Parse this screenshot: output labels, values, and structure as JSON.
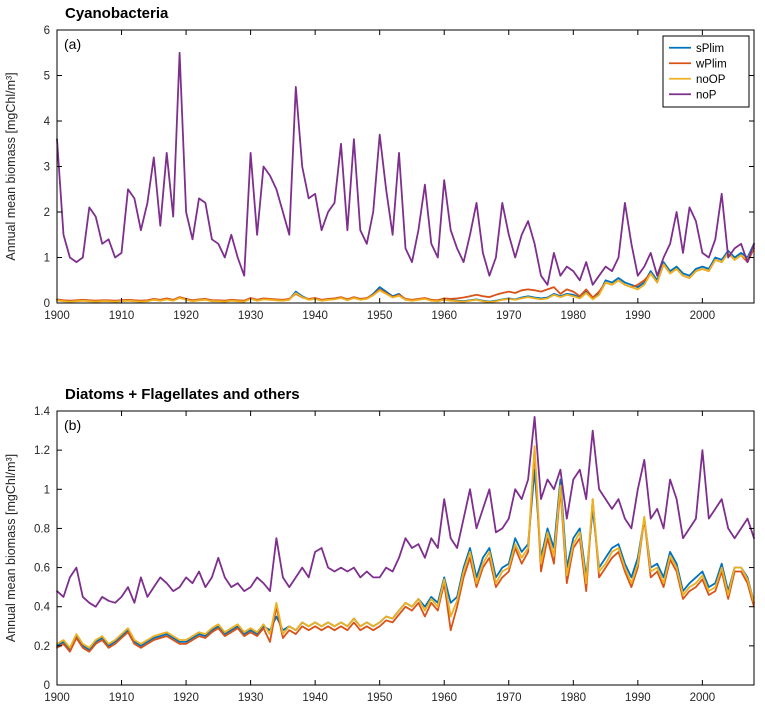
{
  "figure": {
    "background": "#ffffff",
    "axis_color": "#000000",
    "tick_text_color": "#262626",
    "series_colors": {
      "sPlim": "#0072BD",
      "wPlim": "#D95319",
      "noOP": "#EDB120",
      "noP": "#7E2F8E"
    }
  },
  "chart_data": [
    {
      "type": "line",
      "title": "Cyanobacteria",
      "panel_label": "(a)",
      "xlabel": "",
      "ylabel": "Annual mean biomass [mgChl/m³]",
      "x_start": 1900,
      "xlim": [
        1900,
        2008
      ],
      "ylim": [
        0,
        6
      ],
      "xticks": [
        1900,
        1910,
        1920,
        1930,
        1940,
        1950,
        1960,
        1970,
        1980,
        1990,
        2000
      ],
      "yticks": [
        0,
        1,
        2,
        3,
        4,
        5,
        6
      ],
      "ytick_labels": [
        "0",
        "1",
        "2",
        "3",
        "4",
        "5",
        "6"
      ],
      "grid": false,
      "legend": {
        "show": true,
        "position": "top-right",
        "entries": [
          "sPlim",
          "wPlim",
          "noOP",
          "noP"
        ]
      },
      "series": [
        {
          "name": "sPlim",
          "color": "#0072BD",
          "values": [
            0.07,
            0.05,
            0.04,
            0.05,
            0.06,
            0.05,
            0.04,
            0.05,
            0.05,
            0.04,
            0.05,
            0.06,
            0.05,
            0.04,
            0.05,
            0.08,
            0.06,
            0.09,
            0.06,
            0.12,
            0.08,
            0.05,
            0.07,
            0.08,
            0.05,
            0.05,
            0.04,
            0.06,
            0.05,
            0.04,
            0.1,
            0.06,
            0.09,
            0.08,
            0.07,
            0.06,
            0.08,
            0.25,
            0.15,
            0.08,
            0.1,
            0.06,
            0.08,
            0.09,
            0.12,
            0.07,
            0.12,
            0.08,
            0.1,
            0.2,
            0.35,
            0.25,
            0.15,
            0.2,
            0.08,
            0.06,
            0.08,
            0.1,
            0.06,
            0.05,
            0.08,
            0.06,
            0.05,
            0.04,
            0.06,
            0.08,
            0.05,
            0.03,
            0.05,
            0.08,
            0.1,
            0.08,
            0.12,
            0.15,
            0.12,
            0.1,
            0.12,
            0.2,
            0.15,
            0.2,
            0.18,
            0.12,
            0.25,
            0.1,
            0.2,
            0.5,
            0.45,
            0.55,
            0.45,
            0.4,
            0.35,
            0.45,
            0.7,
            0.5,
            0.9,
            0.7,
            0.8,
            0.65,
            0.6,
            0.75,
            0.8,
            0.75,
            1.0,
            0.95,
            1.15,
            1.0,
            1.1,
            1.0,
            1.3
          ]
        },
        {
          "name": "wPlim",
          "color": "#D95319",
          "values": [
            0.08,
            0.06,
            0.05,
            0.06,
            0.07,
            0.06,
            0.05,
            0.06,
            0.06,
            0.05,
            0.06,
            0.07,
            0.06,
            0.05,
            0.06,
            0.09,
            0.07,
            0.1,
            0.07,
            0.13,
            0.09,
            0.06,
            0.08,
            0.09,
            0.06,
            0.06,
            0.05,
            0.07,
            0.06,
            0.05,
            0.11,
            0.07,
            0.1,
            0.09,
            0.08,
            0.07,
            0.09,
            0.2,
            0.12,
            0.09,
            0.11,
            0.07,
            0.09,
            0.1,
            0.13,
            0.08,
            0.13,
            0.09,
            0.11,
            0.18,
            0.3,
            0.22,
            0.13,
            0.18,
            0.09,
            0.07,
            0.09,
            0.11,
            0.07,
            0.06,
            0.1,
            0.09,
            0.1,
            0.12,
            0.15,
            0.18,
            0.15,
            0.13,
            0.18,
            0.22,
            0.25,
            0.22,
            0.28,
            0.3,
            0.28,
            0.25,
            0.3,
            0.35,
            0.2,
            0.3,
            0.25,
            0.15,
            0.3,
            0.12,
            0.25,
            0.45,
            0.4,
            0.5,
            0.4,
            0.35,
            0.4,
            0.5,
            0.65,
            0.45,
            0.85,
            0.65,
            0.75,
            0.6,
            0.55,
            0.7,
            0.75,
            0.7,
            0.95,
            0.9,
            1.1,
            0.95,
            1.05,
            0.9,
            1.2
          ]
        },
        {
          "name": "noOP",
          "color": "#EDB120",
          "values": [
            0.06,
            0.04,
            0.03,
            0.04,
            0.05,
            0.04,
            0.03,
            0.04,
            0.04,
            0.03,
            0.04,
            0.05,
            0.04,
            0.03,
            0.04,
            0.07,
            0.05,
            0.08,
            0.05,
            0.11,
            0.07,
            0.04,
            0.06,
            0.07,
            0.04,
            0.04,
            0.03,
            0.05,
            0.04,
            0.03,
            0.09,
            0.05,
            0.08,
            0.07,
            0.06,
            0.05,
            0.07,
            0.22,
            0.13,
            0.07,
            0.09,
            0.05,
            0.07,
            0.08,
            0.11,
            0.06,
            0.11,
            0.07,
            0.09,
            0.17,
            0.28,
            0.2,
            0.12,
            0.16,
            0.07,
            0.05,
            0.07,
            0.09,
            0.05,
            0.04,
            0.07,
            0.05,
            0.04,
            0.03,
            0.05,
            0.07,
            0.04,
            0.02,
            0.04,
            0.07,
            0.09,
            0.07,
            0.1,
            0.13,
            0.1,
            0.08,
            0.1,
            0.18,
            0.13,
            0.18,
            0.15,
            0.1,
            0.22,
            0.08,
            0.18,
            0.45,
            0.4,
            0.5,
            0.4,
            0.35,
            0.3,
            0.4,
            0.65,
            0.45,
            0.85,
            0.65,
            0.75,
            0.6,
            0.55,
            0.7,
            0.75,
            0.7,
            0.95,
            0.9,
            1.1,
            0.95,
            1.05,
            0.95,
            1.25
          ]
        },
        {
          "name": "noP",
          "color": "#7E2F8E",
          "values": [
            3.6,
            1.5,
            1.0,
            0.9,
            1.0,
            2.1,
            1.9,
            1.3,
            1.4,
            1.0,
            1.1,
            2.5,
            2.3,
            1.6,
            2.2,
            3.2,
            1.7,
            3.3,
            1.9,
            5.5,
            2.0,
            1.4,
            2.3,
            2.2,
            1.4,
            1.3,
            1.0,
            1.5,
            1.0,
            0.6,
            3.3,
            1.5,
            3.0,
            2.8,
            2.5,
            2.0,
            1.5,
            4.75,
            3.0,
            2.3,
            2.4,
            1.6,
            2.0,
            2.2,
            3.5,
            1.6,
            3.6,
            1.6,
            1.3,
            2.0,
            3.7,
            2.5,
            1.5,
            3.3,
            1.2,
            0.9,
            1.6,
            2.6,
            1.3,
            1.0,
            2.7,
            1.6,
            1.2,
            0.9,
            1.5,
            2.2,
            1.1,
            0.6,
            1.0,
            2.2,
            1.5,
            1.0,
            1.5,
            1.8,
            1.3,
            0.6,
            0.4,
            1.1,
            0.6,
            0.8,
            0.7,
            0.5,
            0.9,
            0.4,
            0.6,
            0.8,
            0.7,
            1.0,
            2.2,
            1.3,
            0.6,
            0.8,
            1.1,
            0.6,
            1.0,
            1.3,
            2.0,
            1.1,
            2.1,
            1.8,
            1.1,
            1.0,
            1.4,
            2.4,
            1.0,
            1.2,
            1.3,
            0.9,
            1.3
          ]
        }
      ]
    },
    {
      "type": "line",
      "title": "Diatoms + Flagellates and others",
      "panel_label": "(b)",
      "xlabel": "",
      "ylabel": "Annual mean biomass [mgChl/m³]",
      "x_start": 1900,
      "xlim": [
        1900,
        2008
      ],
      "ylim": [
        0,
        1.4
      ],
      "xticks": [
        1900,
        1910,
        1920,
        1930,
        1940,
        1950,
        1960,
        1970,
        1980,
        1990,
        2000
      ],
      "yticks": [
        0,
        0.2,
        0.4,
        0.6,
        0.8,
        1,
        1.2,
        1.4
      ],
      "ytick_labels": [
        "0",
        "0.2",
        "0.4",
        "0.6",
        "0.8",
        "1",
        "1.2",
        "1.4"
      ],
      "grid": false,
      "legend": {
        "show": false,
        "position": "top-right",
        "entries": [
          "sPlim",
          "wPlim",
          "noOP",
          "noP"
        ]
      },
      "series": [
        {
          "name": "sPlim",
          "color": "#0072BD",
          "values": [
            0.2,
            0.22,
            0.18,
            0.25,
            0.2,
            0.18,
            0.22,
            0.24,
            0.2,
            0.22,
            0.25,
            0.28,
            0.22,
            0.2,
            0.22,
            0.24,
            0.25,
            0.26,
            0.24,
            0.22,
            0.22,
            0.24,
            0.26,
            0.25,
            0.28,
            0.3,
            0.26,
            0.28,
            0.3,
            0.26,
            0.28,
            0.26,
            0.3,
            0.28,
            0.35,
            0.28,
            0.3,
            0.28,
            0.32,
            0.3,
            0.32,
            0.3,
            0.32,
            0.3,
            0.32,
            0.3,
            0.34,
            0.3,
            0.32,
            0.3,
            0.32,
            0.35,
            0.34,
            0.38,
            0.42,
            0.4,
            0.44,
            0.4,
            0.45,
            0.42,
            0.55,
            0.42,
            0.45,
            0.6,
            0.7,
            0.55,
            0.65,
            0.7,
            0.55,
            0.6,
            0.62,
            0.75,
            0.68,
            0.72,
            1.1,
            0.65,
            0.8,
            0.7,
            1.05,
            0.6,
            0.75,
            0.8,
            0.55,
            0.9,
            0.6,
            0.65,
            0.7,
            0.72,
            0.62,
            0.55,
            0.65,
            0.85,
            0.6,
            0.62,
            0.55,
            0.68,
            0.62,
            0.48,
            0.52,
            0.55,
            0.58,
            0.5,
            0.52,
            0.62,
            0.48,
            0.6,
            0.6,
            0.55,
            0.42
          ]
        },
        {
          "name": "wPlim",
          "color": "#D95319",
          "values": [
            0.19,
            0.21,
            0.17,
            0.24,
            0.19,
            0.17,
            0.21,
            0.23,
            0.19,
            0.21,
            0.24,
            0.27,
            0.21,
            0.19,
            0.21,
            0.23,
            0.24,
            0.25,
            0.23,
            0.21,
            0.21,
            0.23,
            0.25,
            0.24,
            0.27,
            0.29,
            0.25,
            0.27,
            0.29,
            0.25,
            0.27,
            0.25,
            0.29,
            0.22,
            0.4,
            0.24,
            0.28,
            0.26,
            0.3,
            0.28,
            0.3,
            0.28,
            0.3,
            0.28,
            0.3,
            0.28,
            0.32,
            0.28,
            0.3,
            0.28,
            0.3,
            0.33,
            0.32,
            0.36,
            0.4,
            0.38,
            0.42,
            0.35,
            0.42,
            0.38,
            0.52,
            0.28,
            0.4,
            0.55,
            0.65,
            0.5,
            0.6,
            0.65,
            0.5,
            0.55,
            0.58,
            0.7,
            0.62,
            0.68,
            1.2,
            0.58,
            0.75,
            0.62,
            1.0,
            0.52,
            0.7,
            0.75,
            0.48,
            0.95,
            0.55,
            0.6,
            0.65,
            0.68,
            0.58,
            0.5,
            0.6,
            0.85,
            0.55,
            0.58,
            0.5,
            0.64,
            0.58,
            0.44,
            0.48,
            0.5,
            0.54,
            0.46,
            0.48,
            0.58,
            0.44,
            0.58,
            0.58,
            0.52,
            0.4
          ]
        },
        {
          "name": "noOP",
          "color": "#EDB120",
          "values": [
            0.21,
            0.23,
            0.19,
            0.26,
            0.21,
            0.19,
            0.23,
            0.25,
            0.21,
            0.23,
            0.26,
            0.29,
            0.23,
            0.21,
            0.23,
            0.25,
            0.26,
            0.27,
            0.25,
            0.23,
            0.23,
            0.25,
            0.27,
            0.26,
            0.29,
            0.31,
            0.27,
            0.29,
            0.31,
            0.27,
            0.29,
            0.27,
            0.31,
            0.26,
            0.42,
            0.26,
            0.3,
            0.28,
            0.32,
            0.3,
            0.32,
            0.3,
            0.32,
            0.3,
            0.32,
            0.3,
            0.34,
            0.3,
            0.32,
            0.3,
            0.32,
            0.35,
            0.34,
            0.38,
            0.42,
            0.4,
            0.44,
            0.38,
            0.44,
            0.4,
            0.54,
            0.35,
            0.43,
            0.58,
            0.68,
            0.52,
            0.62,
            0.68,
            0.52,
            0.58,
            0.6,
            0.72,
            0.65,
            0.7,
            1.22,
            0.62,
            0.78,
            0.66,
            1.02,
            0.56,
            0.72,
            0.78,
            0.52,
            0.95,
            0.58,
            0.62,
            0.68,
            0.7,
            0.6,
            0.52,
            0.62,
            0.86,
            0.58,
            0.6,
            0.52,
            0.66,
            0.6,
            0.46,
            0.5,
            0.52,
            0.56,
            0.48,
            0.5,
            0.6,
            0.46,
            0.6,
            0.6,
            0.54,
            0.42
          ]
        },
        {
          "name": "noP",
          "color": "#7E2F8E",
          "values": [
            0.48,
            0.45,
            0.55,
            0.6,
            0.45,
            0.42,
            0.4,
            0.45,
            0.43,
            0.42,
            0.45,
            0.5,
            0.42,
            0.55,
            0.45,
            0.5,
            0.55,
            0.52,
            0.48,
            0.5,
            0.55,
            0.52,
            0.58,
            0.5,
            0.55,
            0.65,
            0.55,
            0.5,
            0.52,
            0.48,
            0.5,
            0.55,
            0.52,
            0.48,
            0.75,
            0.55,
            0.5,
            0.55,
            0.6,
            0.55,
            0.68,
            0.7,
            0.6,
            0.58,
            0.6,
            0.58,
            0.6,
            0.55,
            0.58,
            0.55,
            0.55,
            0.6,
            0.58,
            0.65,
            0.75,
            0.7,
            0.72,
            0.65,
            0.75,
            0.7,
            0.95,
            0.75,
            0.7,
            0.85,
            1.0,
            0.8,
            0.9,
            1.0,
            0.78,
            0.8,
            0.85,
            1.0,
            0.95,
            1.05,
            1.37,
            0.95,
            1.05,
            1.0,
            1.1,
            0.85,
            1.05,
            1.1,
            0.95,
            1.3,
            1.0,
            0.95,
            0.9,
            0.95,
            0.85,
            0.8,
            1.0,
            1.15,
            0.85,
            0.9,
            0.8,
            1.05,
            0.95,
            0.75,
            0.8,
            0.85,
            1.2,
            0.85,
            0.9,
            0.95,
            0.8,
            0.75,
            0.8,
            0.85,
            0.75
          ]
        }
      ]
    }
  ]
}
